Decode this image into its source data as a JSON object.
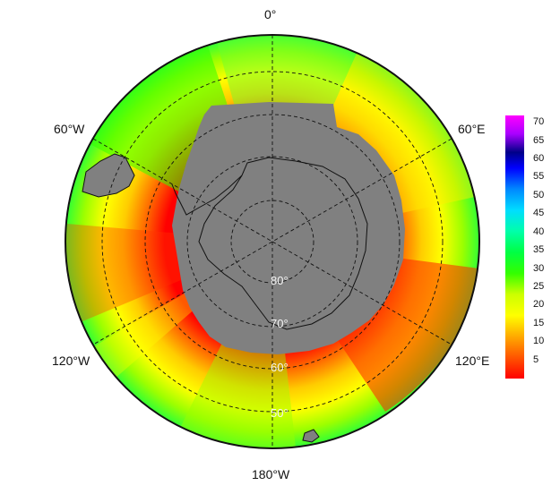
{
  "map": {
    "longitude_labels": {
      "top": "0°",
      "left_upper": "60°W",
      "right_upper": "60°E",
      "left_lower": "120°W",
      "right_lower": "120°E",
      "bottom": "180°W"
    },
    "latitude_labels": [
      "80°",
      "70°",
      "60°",
      "50°"
    ],
    "colorbar": {
      "ticks": [
        "70",
        "65",
        "60",
        "55",
        "50",
        "45",
        "40",
        "35",
        "30",
        "25",
        "20",
        "15",
        "10",
        "5"
      ],
      "min": 0,
      "max": 72,
      "colors": [
        "#ff0000",
        "#ff6a00",
        "#ffcc00",
        "#ffff00",
        "#c8ff00",
        "#33ff00",
        "#00ff00",
        "#00ff99",
        "#00ffff",
        "#0099ff",
        "#0000ff",
        "#000088",
        "#aa00ff",
        "#ff00ff"
      ]
    },
    "land_color": "#808080",
    "ocean_value_colors": [
      "#ff0000",
      "#ff3300",
      "#ff6600",
      "#ff9900",
      "#ffcc00",
      "#ffff00",
      "#ccff00",
      "#99ff00",
      "#33ff00",
      "#00ff33"
    ]
  }
}
